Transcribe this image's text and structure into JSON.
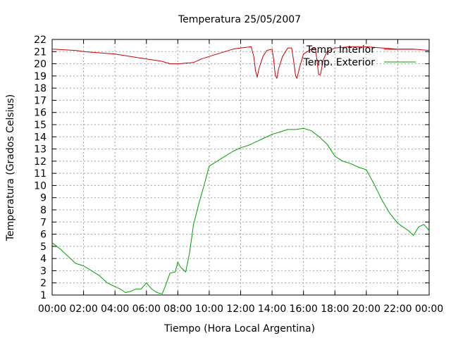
{
  "chart_data": {
    "type": "line",
    "title": "Temperatura 25/05/2007",
    "xlabel": "Tiempo (Hora Local Argentina)",
    "ylabel": "Temperatura (Grados Celsius)",
    "xlim": [
      "00:00",
      "24:00"
    ],
    "ylim": [
      1,
      22
    ],
    "x_ticks": [
      "00:00",
      "02:00",
      "04:00",
      "06:00",
      "08:00",
      "10:00",
      "12:00",
      "14:00",
      "16:00",
      "18:00",
      "20:00",
      "22:00",
      "00:00"
    ],
    "y_ticks": [
      "1",
      "2",
      "3",
      "4",
      "5",
      "6",
      "7",
      "8",
      "9",
      "10",
      "11",
      "12",
      "13",
      "14",
      "15",
      "16",
      "17",
      "18",
      "19",
      "20",
      "21",
      "22"
    ],
    "grid": true,
    "legend_position": "top-right",
    "series": [
      {
        "name": "Temp. Interior",
        "color": "#cc0000",
        "points": [
          [
            "00:00",
            21.2
          ],
          [
            "01:30",
            21.1
          ],
          [
            "02:00",
            21.0
          ],
          [
            "03:00",
            20.9
          ],
          [
            "04:00",
            20.8
          ],
          [
            "05:00",
            20.6
          ],
          [
            "06:00",
            20.4
          ],
          [
            "07:00",
            20.2
          ],
          [
            "07:30",
            20.0
          ],
          [
            "08:00",
            20.0
          ],
          [
            "09:00",
            20.1
          ],
          [
            "09:30",
            20.4
          ],
          [
            "10:00",
            20.6
          ],
          [
            "10:30",
            20.8
          ],
          [
            "11:00",
            21.0
          ],
          [
            "11:30",
            21.2
          ],
          [
            "12:00",
            21.3
          ],
          [
            "12:40",
            21.4
          ],
          [
            "12:50",
            20.6
          ],
          [
            "12:57",
            19.4
          ],
          [
            "13:03",
            18.9
          ],
          [
            "13:10",
            19.6
          ],
          [
            "13:25",
            20.6
          ],
          [
            "13:40",
            21.1
          ],
          [
            "14:00",
            21.2
          ],
          [
            "14:06",
            20.4
          ],
          [
            "14:12",
            19.1
          ],
          [
            "14:18",
            18.8
          ],
          [
            "14:25",
            19.6
          ],
          [
            "14:40",
            20.6
          ],
          [
            "15:00",
            21.3
          ],
          [
            "15:15",
            21.3
          ],
          [
            "15:22",
            20.3
          ],
          [
            "15:30",
            19.0
          ],
          [
            "15:35",
            18.8
          ],
          [
            "15:45",
            19.7
          ],
          [
            "16:00",
            20.8
          ],
          [
            "16:30",
            21.2
          ],
          [
            "16:45",
            21.3
          ],
          [
            "16:52",
            20.2
          ],
          [
            "16:58",
            19.1
          ],
          [
            "17:05",
            19.1
          ],
          [
            "17:15",
            20.3
          ],
          [
            "17:30",
            21.0
          ],
          [
            "18:00",
            21.3
          ],
          [
            "19:00",
            21.4
          ],
          [
            "20:00",
            21.4
          ],
          [
            "21:00",
            21.3
          ],
          [
            "22:00",
            21.2
          ],
          [
            "23:00",
            21.2
          ],
          [
            "24:00",
            21.1
          ]
        ]
      },
      {
        "name": "Temp. Exterior",
        "color": "#00a000",
        "points": [
          [
            "00:00",
            5.3
          ],
          [
            "00:30",
            4.8
          ],
          [
            "01:00",
            4.2
          ],
          [
            "01:30",
            3.6
          ],
          [
            "02:00",
            3.4
          ],
          [
            "02:30",
            3.0
          ],
          [
            "03:00",
            2.6
          ],
          [
            "03:30",
            2.0
          ],
          [
            "04:00",
            1.7
          ],
          [
            "04:20",
            1.5
          ],
          [
            "04:40",
            1.2
          ],
          [
            "05:00",
            1.3
          ],
          [
            "05:20",
            1.5
          ],
          [
            "05:40",
            1.5
          ],
          [
            "06:00",
            2.0
          ],
          [
            "06:20",
            1.5
          ],
          [
            "06:40",
            1.2
          ],
          [
            "07:00",
            1.1
          ],
          [
            "07:10",
            1.6
          ],
          [
            "07:30",
            2.8
          ],
          [
            "07:50",
            2.9
          ],
          [
            "08:00",
            3.7
          ],
          [
            "08:10",
            3.3
          ],
          [
            "08:20",
            3.1
          ],
          [
            "08:30",
            2.9
          ],
          [
            "08:45",
            4.5
          ],
          [
            "09:00",
            6.8
          ],
          [
            "09:20",
            8.5
          ],
          [
            "09:40",
            10.0
          ],
          [
            "10:00",
            11.6
          ],
          [
            "10:30",
            12.0
          ],
          [
            "11:00",
            12.4
          ],
          [
            "11:30",
            12.8
          ],
          [
            "12:00",
            13.1
          ],
          [
            "12:30",
            13.3
          ],
          [
            "13:00",
            13.6
          ],
          [
            "13:30",
            13.9
          ],
          [
            "14:00",
            14.2
          ],
          [
            "14:30",
            14.4
          ],
          [
            "15:00",
            14.6
          ],
          [
            "15:30",
            14.6
          ],
          [
            "16:00",
            14.7
          ],
          [
            "16:30",
            14.5
          ],
          [
            "17:00",
            14.0
          ],
          [
            "17:30",
            13.4
          ],
          [
            "18:00",
            12.4
          ],
          [
            "18:30",
            12.0
          ],
          [
            "19:00",
            11.8
          ],
          [
            "19:30",
            11.5
          ],
          [
            "20:00",
            11.3
          ],
          [
            "20:30",
            10.1
          ],
          [
            "21:00",
            8.8
          ],
          [
            "21:30",
            7.7
          ],
          [
            "22:00",
            6.9
          ],
          [
            "22:20",
            6.6
          ],
          [
            "22:40",
            6.3
          ],
          [
            "23:00",
            5.9
          ],
          [
            "23:20",
            6.6
          ],
          [
            "23:40",
            6.8
          ],
          [
            "24:00",
            6.3
          ]
        ]
      }
    ]
  }
}
